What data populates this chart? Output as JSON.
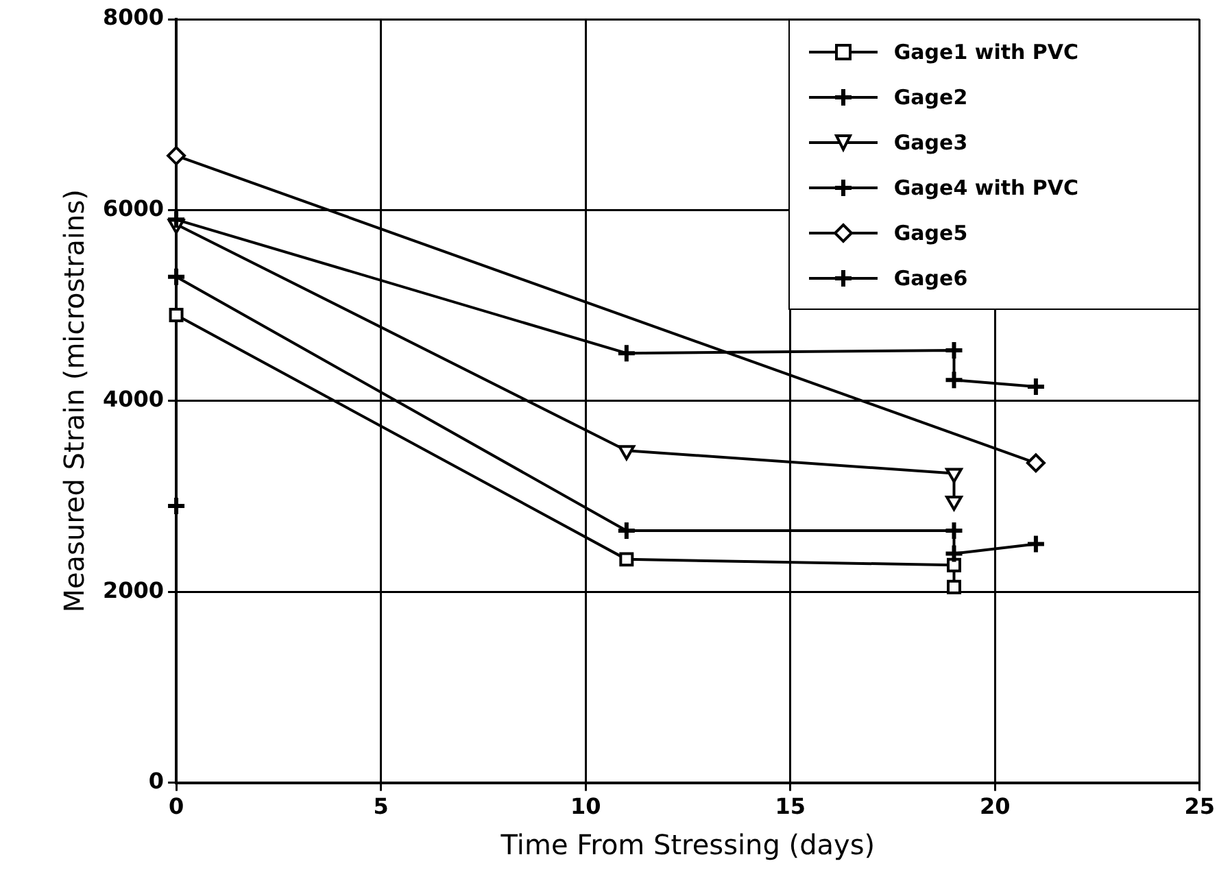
{
  "chart_data": {
    "type": "line",
    "xlabel": "Time From Stressing (days)",
    "ylabel": "Measured Strain (microstrains)",
    "xlim": [
      0,
      25
    ],
    "xticks": [
      0,
      5,
      10,
      15,
      20,
      25
    ],
    "ylim": [
      0,
      8000
    ],
    "yticks": [
      0,
      2000,
      4000,
      6000,
      8000
    ],
    "grid": true,
    "legend": "top right",
    "line_style": "solid",
    "series": [
      {
        "name": "Gage1 with PVC",
        "color": "#000000",
        "marker": "square",
        "x": [
          0,
          11,
          19,
          19
        ],
        "values": [
          4900,
          2340,
          2280,
          2050
        ]
      },
      {
        "name": "Gage2",
        "color": "#000000",
        "marker": "cross",
        "x": [
          0
        ],
        "values": [
          2900
        ]
      },
      {
        "name": "Gage3",
        "color": "#000000",
        "marker": "triangle",
        "x": [
          0,
          11,
          19,
          19
        ],
        "values": [
          5850,
          3480,
          3240,
          2950
        ]
      },
      {
        "name": "Gage4 with PVC",
        "color": "#000000",
        "marker": "cross",
        "x": [
          0,
          11,
          19,
          19,
          21
        ],
        "values": [
          5300,
          2640,
          2640,
          2400,
          2500
        ]
      },
      {
        "name": "Gage5",
        "color": "#000000",
        "marker": "diamond",
        "x": [
          0,
          21
        ],
        "values": [
          6570,
          3350
        ]
      },
      {
        "name": "Gage6",
        "color": "#000000",
        "marker": "cross",
        "x": [
          0,
          11,
          19,
          19,
          21
        ],
        "values": [
          5900,
          4500,
          4530,
          4220,
          4150
        ]
      }
    ]
  }
}
